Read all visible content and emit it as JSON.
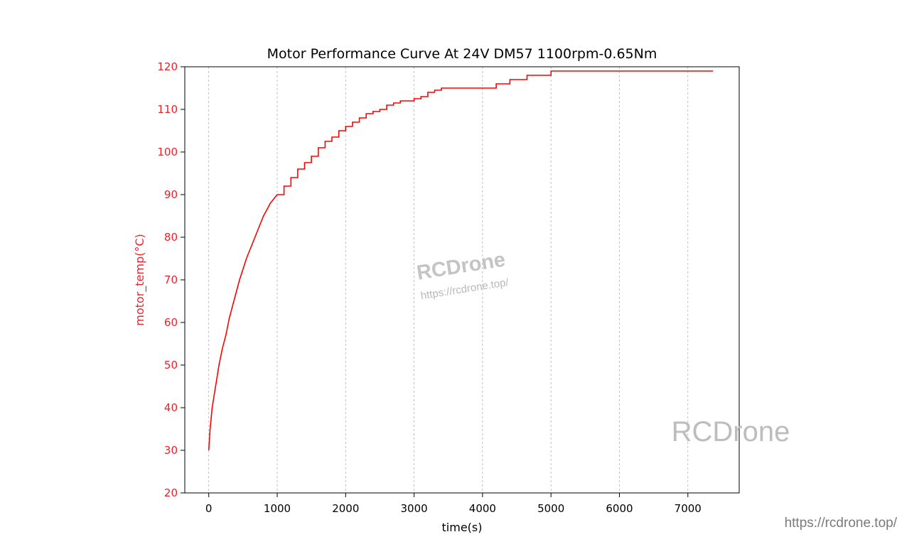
{
  "chart_data": {
    "type": "line",
    "title": "Motor Performance Curve At 24V DM57 1100rpm-0.65Nm",
    "xlabel": "time(s)",
    "ylabel": "motor_temp(°C)",
    "xlim": [
      -350,
      7750
    ],
    "ylim": [
      20,
      120
    ],
    "xticks": [
      0,
      1000,
      2000,
      3000,
      4000,
      5000,
      6000,
      7000
    ],
    "yticks": [
      20,
      30,
      40,
      50,
      60,
      70,
      80,
      90,
      100,
      110,
      120
    ],
    "grid": "vertical dashed",
    "colors": {
      "series": "#ff0000",
      "ylabel": "#e8232a",
      "grid": "#b0b0b0"
    },
    "series": [
      {
        "values_x": [
          0,
          20,
          50,
          100,
          150,
          200,
          250,
          300,
          350,
          400,
          450,
          500,
          550,
          600,
          650,
          700,
          750,
          800,
          850,
          900,
          950,
          1000,
          1100,
          1200,
          1300,
          1400,
          1500,
          1600,
          1700,
          1800,
          1900,
          2000,
          2100,
          2200,
          2300,
          2400,
          2500,
          2600,
          2700,
          2800,
          2900,
          3000,
          3100,
          3200,
          3300,
          3400,
          3600,
          3800,
          4000,
          4200,
          4400,
          4650,
          4950,
          5000,
          5200,
          5500,
          6000,
          6500,
          7000,
          7370
        ],
        "values_y": [
          30,
          35,
          40,
          45,
          50,
          54,
          57,
          61,
          64,
          67,
          70,
          72.5,
          75,
          77,
          79,
          81,
          83,
          85,
          86.5,
          88,
          89,
          90,
          92,
          94,
          96,
          97.5,
          99,
          101,
          102.5,
          103.5,
          105,
          106,
          107,
          108,
          109,
          109.5,
          110,
          111,
          111.5,
          112,
          112,
          112.5,
          113,
          114,
          114.5,
          115,
          115,
          115,
          115,
          116,
          117,
          118,
          118,
          119,
          119,
          119,
          119,
          119,
          119,
          119
        ]
      }
    ]
  },
  "watermark": {
    "center_logo": "RCDrone",
    "center_url": "https://rcdrone.top/",
    "corner_logo": "RCDrone",
    "footer_url": "https://rcdrone.top/"
  }
}
